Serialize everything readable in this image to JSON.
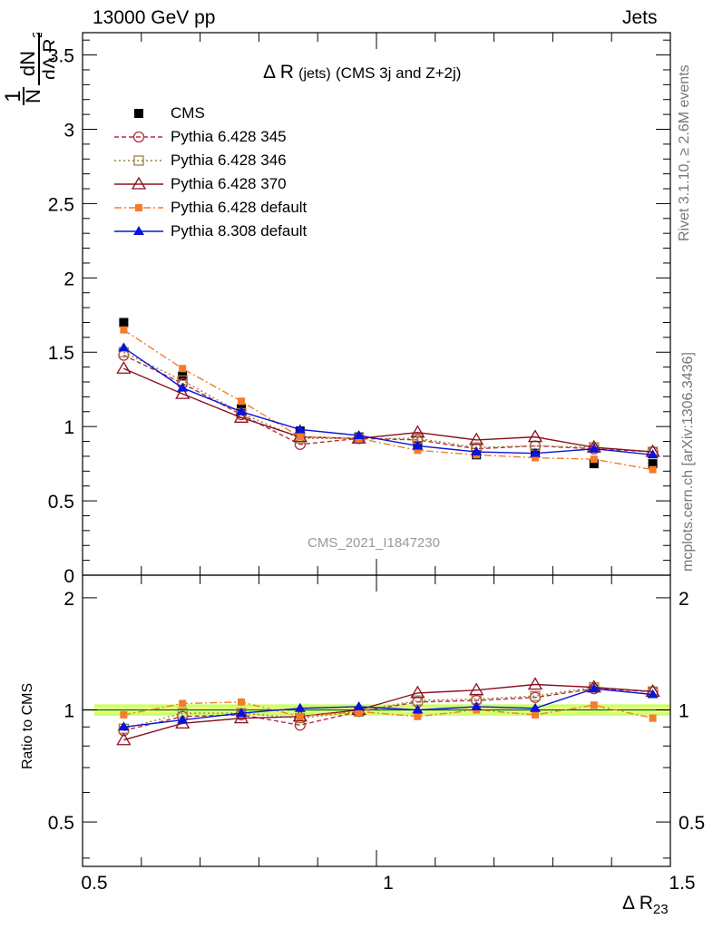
{
  "header": {
    "left_label": "13000 GeV pp",
    "right_label": "Jets"
  },
  "side_notes": {
    "rivet": "Rivet 3.1.10, ≥ 2.6M events",
    "mcplots": "mcplots.cern.ch [arXiv:1306.3436]"
  },
  "plot_title": "Δ R (jets) (CMS 3j and Z+2j)",
  "plot_title_parts": {
    "main": "Δ R",
    "small": "(jets)",
    "rest": "(CMS 3j and Z+2j)"
  },
  "watermark": "CMS_2021_I1847230",
  "axes": {
    "ylabel_top_num": "1",
    "ylabel_top_n": "N",
    "ylabel_top_dn": "dN",
    "ylabel_top_den": "dΔ R",
    "ylabel_top_sub": "23",
    "ylabel_ratio": "Ratio to CMS",
    "xlabel_main": "Δ R",
    "xlabel_sub": "23"
  },
  "colors": {
    "cms": "#000000",
    "p345": "#b03040",
    "p346": "#9c8040",
    "p370": "#8b1020",
    "p6default": "#f57c2a",
    "p8default": "#0a14d8",
    "band_outer": "#ccff66",
    "band_inner": "#ffff99",
    "ratio_line": "#008000"
  },
  "chart_data": {
    "type": "line",
    "x": [
      0.55,
      0.65,
      0.75,
      0.85,
      0.95,
      1.05,
      1.15,
      1.25,
      1.35,
      1.45
    ],
    "xlim": [
      0.5,
      1.5
    ],
    "x_ticks": [
      "0.5",
      "1",
      "1.5"
    ],
    "main_panel": {
      "ylim": [
        0,
        3.65
      ],
      "y_ticks": [
        "0",
        "0.5",
        "1",
        "1.5",
        "2",
        "2.5",
        "3",
        "3.5"
      ],
      "series": [
        {
          "name": "CMS",
          "key": "cms",
          "values": [
            1.7,
            1.34,
            1.12,
            0.97,
            0.93,
            0.87,
            0.81,
            0.82,
            0.75,
            0.75
          ]
        },
        {
          "name": "Pythia 6.428 345",
          "key": "p345",
          "values": [
            1.48,
            1.29,
            1.08,
            0.88,
            0.92,
            0.91,
            0.85,
            0.87,
            0.85,
            0.83
          ]
        },
        {
          "name": "Pythia 6.428 346",
          "key": "p346",
          "values": [
            1.5,
            1.31,
            1.09,
            0.92,
            0.92,
            0.92,
            0.86,
            0.87,
            0.86,
            0.83
          ]
        },
        {
          "name": "Pythia 6.428 370",
          "key": "p370",
          "values": [
            1.39,
            1.22,
            1.06,
            0.93,
            0.92,
            0.96,
            0.91,
            0.93,
            0.86,
            0.83
          ]
        },
        {
          "name": "Pythia 6.428 default",
          "key": "p6default",
          "values": [
            1.65,
            1.39,
            1.17,
            0.93,
            0.92,
            0.84,
            0.81,
            0.79,
            0.78,
            0.71
          ]
        },
        {
          "name": "Pythia 8.308 default",
          "key": "p8default",
          "values": [
            1.53,
            1.26,
            1.1,
            0.98,
            0.94,
            0.87,
            0.83,
            0.82,
            0.85,
            0.81
          ]
        }
      ]
    },
    "ratio_panel": {
      "ylim": [
        0.38,
        2.3
      ],
      "log_scale": true,
      "y_ticks": [
        "0.5",
        "1",
        "2"
      ],
      "series": [
        {
          "key": "p345",
          "values": [
            0.88,
            0.96,
            0.97,
            0.91,
            0.99,
            1.05,
            1.06,
            1.08,
            1.14,
            1.12
          ]
        },
        {
          "key": "p346",
          "values": [
            0.89,
            0.98,
            0.98,
            0.95,
            0.99,
            1.06,
            1.07,
            1.09,
            1.15,
            1.12
          ]
        },
        {
          "key": "p370",
          "values": [
            0.83,
            0.92,
            0.95,
            0.96,
            1.0,
            1.11,
            1.13,
            1.17,
            1.15,
            1.12
          ]
        },
        {
          "key": "p6default",
          "values": [
            0.97,
            1.04,
            1.05,
            0.96,
            0.99,
            0.96,
            1.0,
            0.97,
            1.03,
            0.95
          ]
        },
        {
          "key": "p8default",
          "values": [
            0.9,
            0.94,
            0.98,
            1.01,
            1.02,
            1.0,
            1.02,
            1.01,
            1.14,
            1.1
          ]
        }
      ]
    },
    "legend_position": "top-left"
  }
}
